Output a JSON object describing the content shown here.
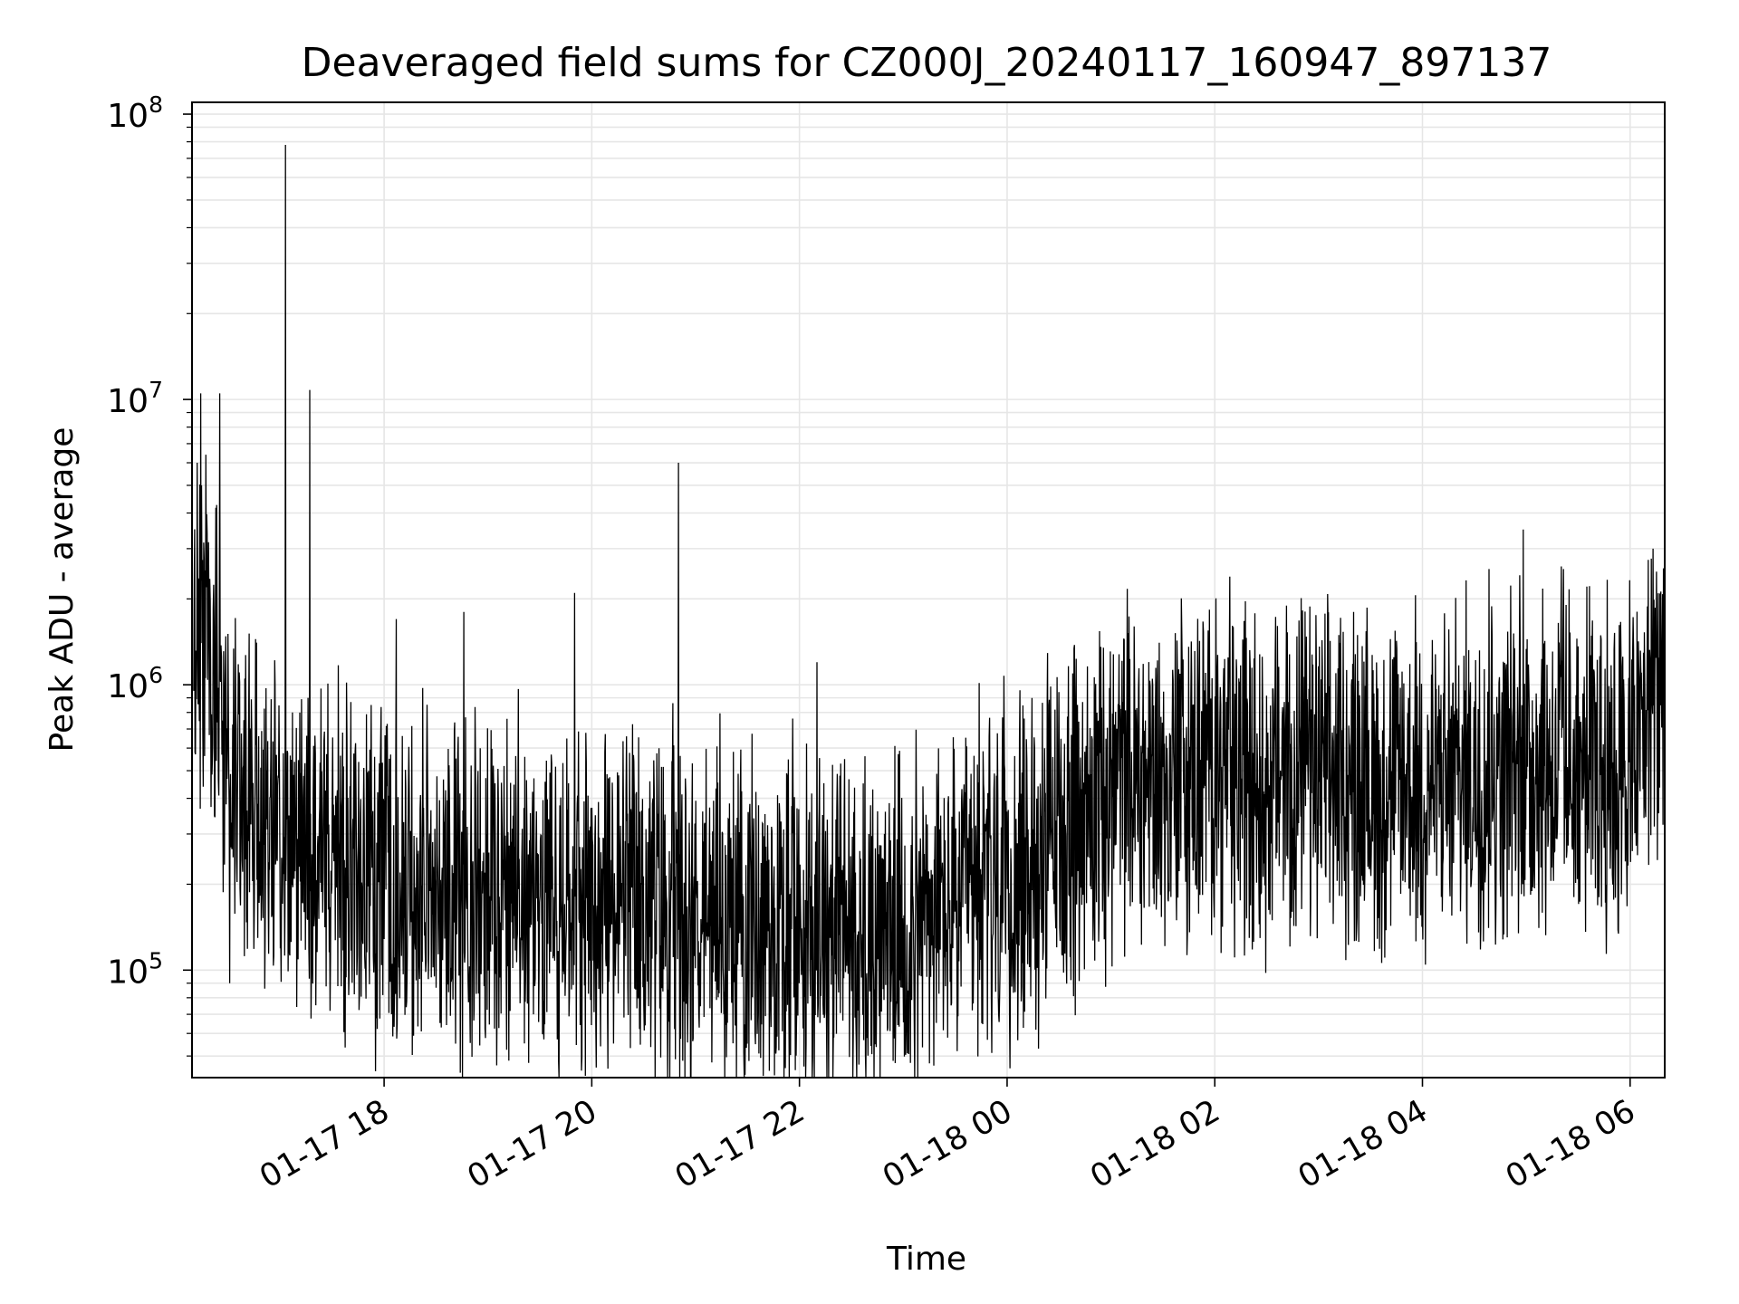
{
  "chart_data": {
    "type": "line",
    "title": "Deaveraged field sums for CZ000J_20240117_160947_897137",
    "xlabel": "Time",
    "ylabel": "Peak ADU - average",
    "yscale": "log",
    "ylim": [
      42000,
      110000000
    ],
    "xlim": [
      "2024-01-17 16:09",
      "2024-01-18 06:20"
    ],
    "grid": true,
    "colors": {
      "line": "#000000",
      "grid": "#e6e6e6"
    },
    "x_ticks": [
      {
        "value": "2024-01-17 18:00",
        "label": "01-17 18"
      },
      {
        "value": "2024-01-17 20:00",
        "label": "01-17 20"
      },
      {
        "value": "2024-01-17 22:00",
        "label": "01-17 22"
      },
      {
        "value": "2024-01-18 00:00",
        "label": "01-18 00"
      },
      {
        "value": "2024-01-18 02:00",
        "label": "01-18 02"
      },
      {
        "value": "2024-01-18 04:00",
        "label": "01-18 04"
      },
      {
        "value": "2024-01-18 06:00",
        "label": "01-18 06"
      }
    ],
    "y_ticks": [
      {
        "value": 100000,
        "base": "10",
        "exp": "5"
      },
      {
        "value": 1000000,
        "base": "10",
        "exp": "6"
      },
      {
        "value": 10000000,
        "base": "10",
        "exp": "7"
      },
      {
        "value": 100000000,
        "base": "10",
        "exp": "8"
      }
    ],
    "baseline": [
      [
        "2024-01-17 16:10",
        2000000
      ],
      [
        "2024-01-17 16:18",
        1500000
      ],
      [
        "2024-01-17 16:25",
        1000000
      ],
      [
        "2024-01-17 16:30",
        400000
      ],
      [
        "2024-01-17 17:00",
        300000
      ],
      [
        "2024-01-17 18:00",
        200000
      ],
      [
        "2024-01-17 20:00",
        180000
      ],
      [
        "2024-01-17 22:00",
        150000
      ],
      [
        "2024-01-17 23:00",
        140000
      ],
      [
        "2024-01-18 00:00",
        200000
      ],
      [
        "2024-01-18 01:00",
        450000
      ],
      [
        "2024-01-18 02:00",
        500000
      ],
      [
        "2024-01-18 04:00",
        450000
      ],
      [
        "2024-01-18 05:00",
        550000
      ],
      [
        "2024-01-18 06:00",
        500000
      ],
      [
        "2024-01-18 06:20",
        1200000
      ]
    ],
    "spikes": [
      [
        "2024-01-17 16:12",
        6000000
      ],
      [
        "2024-01-17 16:14",
        10500000
      ],
      [
        "2024-01-17 16:25",
        10500000
      ],
      [
        "2024-01-17 17:03",
        78000000
      ],
      [
        "2024-01-17 17:17",
        10800000
      ],
      [
        "2024-01-17 18:07",
        1700000
      ],
      [
        "2024-01-17 18:46",
        1800000
      ],
      [
        "2024-01-17 19:50",
        2100000
      ],
      [
        "2024-01-17 20:50",
        6000000
      ],
      [
        "2024-01-17 22:10",
        1200000
      ],
      [
        "2024-01-18 03:20",
        1800000
      ],
      [
        "2024-01-18 04:58",
        3500000
      ],
      [
        "2024-01-18 05:20",
        2600000
      ],
      [
        "2024-01-18 06:13",
        3000000
      ]
    ]
  }
}
